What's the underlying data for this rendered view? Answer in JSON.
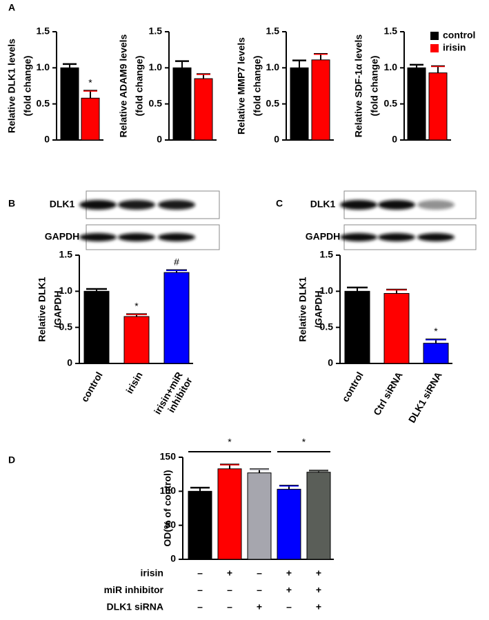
{
  "chart_data": [
    {
      "type": "bar",
      "panel_label": "A",
      "ylabel": [
        "Relative DLK1 levels",
        "(fold change)"
      ],
      "values": [
        1.0,
        0.58
      ],
      "errors": [
        0.05,
        0.1
      ],
      "colors": [
        "#000000",
        "#ff0000"
      ],
      "annotations": [
        null,
        "*"
      ],
      "ylim": [
        0,
        1.5
      ],
      "yticks": [
        0,
        0.5,
        {
          "value": 1,
          "label": "1.0"
        },
        1.5
      ]
    },
    {
      "type": "bar",
      "ylabel": [
        "Relative  ADAM9 levels",
        "(fold change)"
      ],
      "values": [
        1.0,
        0.85
      ],
      "errors": [
        0.09,
        0.06
      ],
      "colors": [
        "#000000",
        "#ff0000"
      ],
      "ylim": [
        0,
        1.5
      ],
      "yticks": [
        0,
        0.5,
        {
          "value": 1,
          "label": "1.0"
        },
        1.5
      ]
    },
    {
      "type": "bar",
      "ylabel": [
        "Relative  MMP7 levels",
        "(fold change)"
      ],
      "values": [
        1.0,
        1.11
      ],
      "errors": [
        0.1,
        0.08
      ],
      "colors": [
        "#000000",
        "#ff0000"
      ],
      "ylim": [
        0,
        1.5
      ],
      "yticks": [
        0,
        0.5,
        {
          "value": 1,
          "label": "1.0"
        },
        1.5
      ]
    },
    {
      "type": "bar",
      "ylabel": [
        "Relative SDF-1α levels",
        "(fold change)"
      ],
      "values": [
        1.0,
        0.93
      ],
      "errors": [
        0.04,
        0.09
      ],
      "colors": [
        "#000000",
        "#ff0000"
      ],
      "ylim": [
        0,
        1.5
      ],
      "yticks": [
        0,
        0.5,
        {
          "value": 1,
          "label": "1.0"
        },
        1.5
      ],
      "legend": [
        {
          "name": "control",
          "color": "#000000"
        },
        {
          "name": "irisin",
          "color": "#ff0000"
        }
      ]
    },
    {
      "type": "bar",
      "panel_label": "B",
      "blot_labels": [
        "DLK1",
        "GAPDH"
      ],
      "ylabel": [
        "Relative DLK1",
        "/GAPDH"
      ],
      "categories": [
        [
          "control"
        ],
        [
          "irisin"
        ],
        [
          "irisin+miR",
          "inhibitor"
        ]
      ],
      "values": [
        1.0,
        0.65,
        1.26
      ],
      "errors": [
        0.03,
        0.03,
        0.03
      ],
      "colors": [
        "#000000",
        "#ff0000",
        "#0000ff"
      ],
      "annotations": [
        null,
        "*",
        "#"
      ],
      "ylim": [
        0,
        1.5
      ],
      "yticks": [
        0,
        0.5,
        {
          "value": 1,
          "label": "1.0"
        },
        1.5
      ]
    },
    {
      "type": "bar",
      "panel_label": "C",
      "blot_labels": [
        "DLK1",
        "GAPDH"
      ],
      "ylabel": [
        "Relative DLK1",
        "/GAPDH"
      ],
      "categories": [
        [
          "control"
        ],
        [
          "Ctrl siRNA"
        ],
        [
          "DLK1 siRNA"
        ]
      ],
      "values": [
        1.0,
        0.97,
        0.28
      ],
      "errors": [
        0.05,
        0.05,
        0.05
      ],
      "colors": [
        "#000000",
        "#ff0000",
        "#0000ff"
      ],
      "annotations": [
        null,
        null,
        "*"
      ],
      "ylim": [
        0,
        1.5
      ],
      "yticks": [
        0,
        0.5,
        {
          "value": 1,
          "label": "1.0"
        },
        1.5
      ]
    },
    {
      "type": "bar",
      "panel_label": "D",
      "ylabel": [
        "OD(% of control)"
      ],
      "values": [
        100,
        133,
        127,
        103,
        128
      ],
      "errors": [
        5,
        6,
        5,
        5,
        2
      ],
      "colors": [
        "#000000",
        "#ff0000",
        "#a6a6ae",
        "#0000ff",
        "#5a5e58"
      ],
      "ylim": [
        0,
        150
      ],
      "yticks": [
        0,
        50,
        100,
        150
      ],
      "significance": [
        {
          "text": "*",
          "from": 0,
          "to": 2
        },
        {
          "text": "*",
          "from": 3,
          "to": 4
        }
      ],
      "conditions": [
        {
          "label": "irisin",
          "marks": [
            "–",
            "+",
            "–",
            "+",
            "+"
          ]
        },
        {
          "label": "miR inhibitor",
          "marks": [
            "–",
            "–",
            "–",
            "+",
            "+"
          ]
        },
        {
          "label": "DLK1 siRNA",
          "marks": [
            "–",
            "–",
            "+",
            "–",
            "+"
          ]
        }
      ]
    }
  ]
}
